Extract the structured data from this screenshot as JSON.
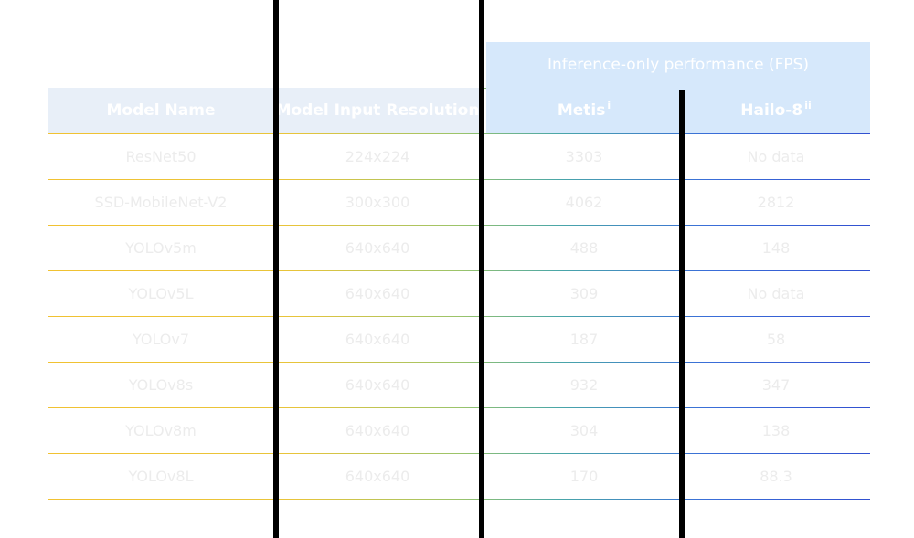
{
  "table": {
    "group_header": "Inference-only performance (FPS)",
    "columns": {
      "model_name": "Model Name",
      "input_resolution": "Model Input Resolution",
      "metis": "Metis",
      "metis_note": "i",
      "hailo": "Hailo-8",
      "hailo_note": "ii"
    },
    "rows": [
      {
        "model": "ResNet50",
        "resolution": "224x224",
        "metis": "3303",
        "hailo": "No data"
      },
      {
        "model": "SSD-MobileNet-V2",
        "resolution": "300x300",
        "metis": "4062",
        "hailo": "2812"
      },
      {
        "model": "YOLOv5m",
        "resolution": "640x640",
        "metis": "488",
        "hailo": "148"
      },
      {
        "model": "YOLOv5L",
        "resolution": "640x640",
        "metis": "309",
        "hailo": "No data"
      },
      {
        "model": "YOLOv7",
        "resolution": "640x640",
        "metis": "187",
        "hailo": "58"
      },
      {
        "model": "YOLOv8s",
        "resolution": "640x640",
        "metis": "932",
        "hailo": "347"
      },
      {
        "model": "YOLOv8m",
        "resolution": "640x640",
        "metis": "304",
        "hailo": "138"
      },
      {
        "model": "YOLOv8L",
        "resolution": "640x640",
        "metis": "170",
        "hailo": "88.3"
      }
    ]
  },
  "colors": {
    "header_light": "#e8eff8",
    "header_blue": "#d6e8fb",
    "rule_start": "#f1c232",
    "rule_end": "#3250d0",
    "divider": "#000000"
  }
}
